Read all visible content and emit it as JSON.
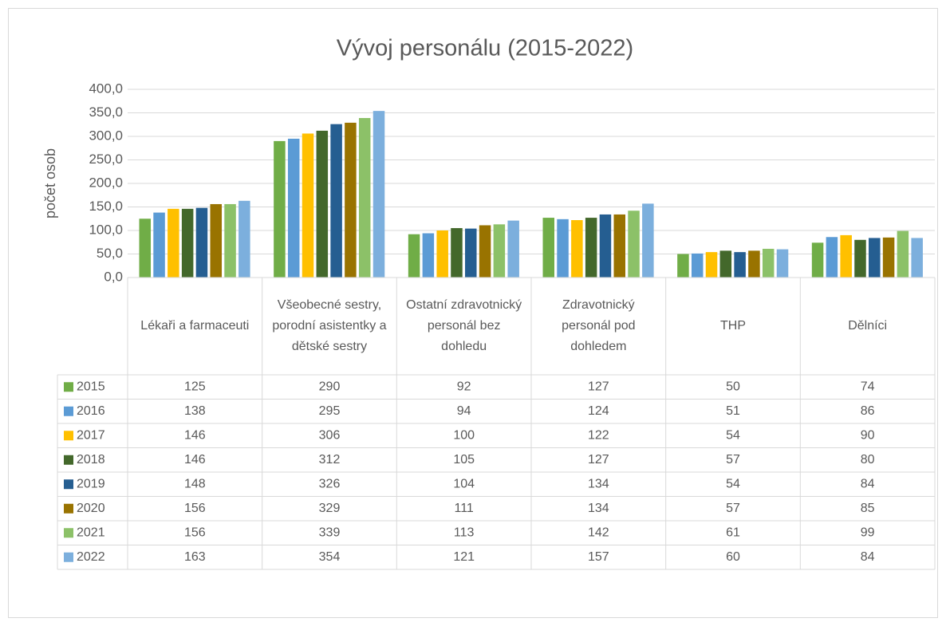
{
  "chart_data": {
    "type": "bar",
    "title": "Vývoj personálu (2015-2022)",
    "y_label": "počet osob",
    "categories": [
      "Lékaři a farmaceuti",
      "Všeobecné sestry, porodní asistentky a dětské sestry",
      "Ostatní zdravotnický personál bez dohledu",
      "Zdravotnický personál pod dohledem",
      "THP",
      "Dělníci"
    ],
    "series": [
      {
        "name": "2015",
        "color": "#70ad47",
        "values": [
          125,
          290,
          92,
          127,
          50,
          74
        ]
      },
      {
        "name": "2016",
        "color": "#5b9bd5",
        "values": [
          138,
          295,
          94,
          124,
          51,
          86
        ]
      },
      {
        "name": "2017",
        "color": "#ffc000",
        "values": [
          146,
          306,
          100,
          122,
          54,
          90
        ]
      },
      {
        "name": "2018",
        "color": "#43682b",
        "values": [
          146,
          312,
          105,
          127,
          57,
          80
        ]
      },
      {
        "name": "2019",
        "color": "#255e91",
        "values": [
          148,
          326,
          104,
          134,
          54,
          84
        ]
      },
      {
        "name": "2020",
        "color": "#997300",
        "values": [
          156,
          329,
          111,
          134,
          57,
          85
        ]
      },
      {
        "name": "2021",
        "color": "#8cc168",
        "values": [
          156,
          339,
          113,
          142,
          61,
          99
        ]
      },
      {
        "name": "2022",
        "color": "#7cafdd",
        "values": [
          163,
          354,
          121,
          157,
          60,
          84
        ]
      }
    ],
    "ylim": [
      0,
      400
    ],
    "yticks": [
      {
        "value": 0,
        "label": "0,0"
      },
      {
        "value": 50,
        "label": "50,0"
      },
      {
        "value": 100,
        "label": "100,0"
      },
      {
        "value": 150,
        "label": "150,0"
      },
      {
        "value": 200,
        "label": "200,0"
      },
      {
        "value": 250,
        "label": "250,0"
      },
      {
        "value": 300,
        "label": "300,0"
      },
      {
        "value": 350,
        "label": "350,0"
      },
      {
        "value": 400,
        "label": "400,0"
      }
    ],
    "grid": true,
    "data_table": true
  }
}
